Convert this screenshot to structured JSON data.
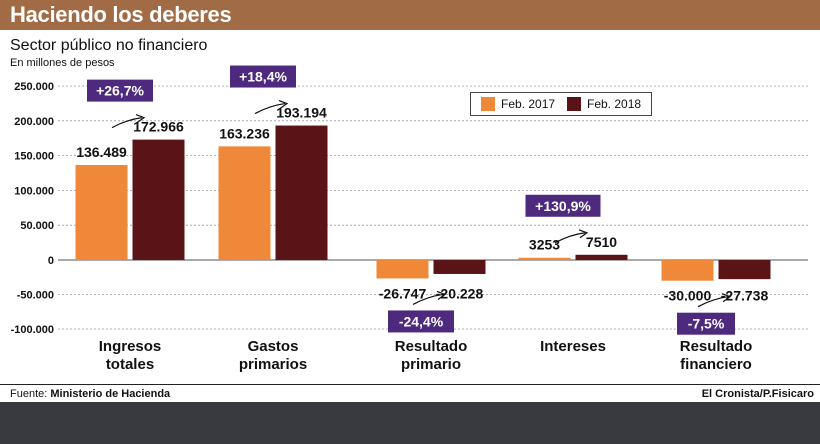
{
  "header": {
    "title": "Haciendo los deberes",
    "subtitle": "Sector público no financiero",
    "units": "En millones de pesos"
  },
  "colors": {
    "title_bar": "#a06b45",
    "series_2017": "#f0883a",
    "series_2018": "#5a1418",
    "change_badge": "#4e2a7f"
  },
  "legend": {
    "placement": "top-right",
    "items": [
      {
        "label": "Feb. 2017",
        "color": "#f0883a"
      },
      {
        "label": "Feb. 2018",
        "color": "#5a1418"
      }
    ]
  },
  "footer": {
    "source_prefix": "Fuente: ",
    "source": "Ministerio de Hacienda",
    "credit": "El Cronista/P.Fisicaro"
  },
  "chart_data": {
    "type": "bar",
    "title": "",
    "xlabel": "",
    "ylabel": "",
    "ylim": [
      -100000,
      250000
    ],
    "grid": true,
    "yticks": [
      250000,
      200000,
      150000,
      100000,
      50000,
      0,
      -50000,
      -100000
    ],
    "ytick_labels": [
      "250.000",
      "200.000",
      "150.000",
      "100.000",
      "50.000",
      "0",
      "-50.000",
      "-100.000"
    ],
    "categories": [
      [
        "Ingresos",
        "totales"
      ],
      [
        "Gastos",
        "primarios"
      ],
      [
        "Resultado",
        "primario"
      ],
      [
        "Intereses"
      ],
      [
        "Resultado",
        "financiero"
      ]
    ],
    "series": [
      {
        "name": "Feb. 2017",
        "color": "#f0883a",
        "values": [
          136489,
          163236,
          -26747,
          3253,
          -30000
        ],
        "labels": [
          "136.489",
          "163.236",
          "-26.747",
          "3253",
          "-30.000"
        ]
      },
      {
        "name": "Feb. 2018",
        "color": "#5a1418",
        "values": [
          172966,
          193194,
          -20228,
          7510,
          -27738
        ],
        "labels": [
          "172.966",
          "193.194",
          "-20.228",
          "7510",
          "-27.738"
        ]
      }
    ],
    "annotations": [
      "+26,7%",
      "+18,4%",
      "-24,4%",
      "+130,9%",
      "-7,5%"
    ]
  }
}
